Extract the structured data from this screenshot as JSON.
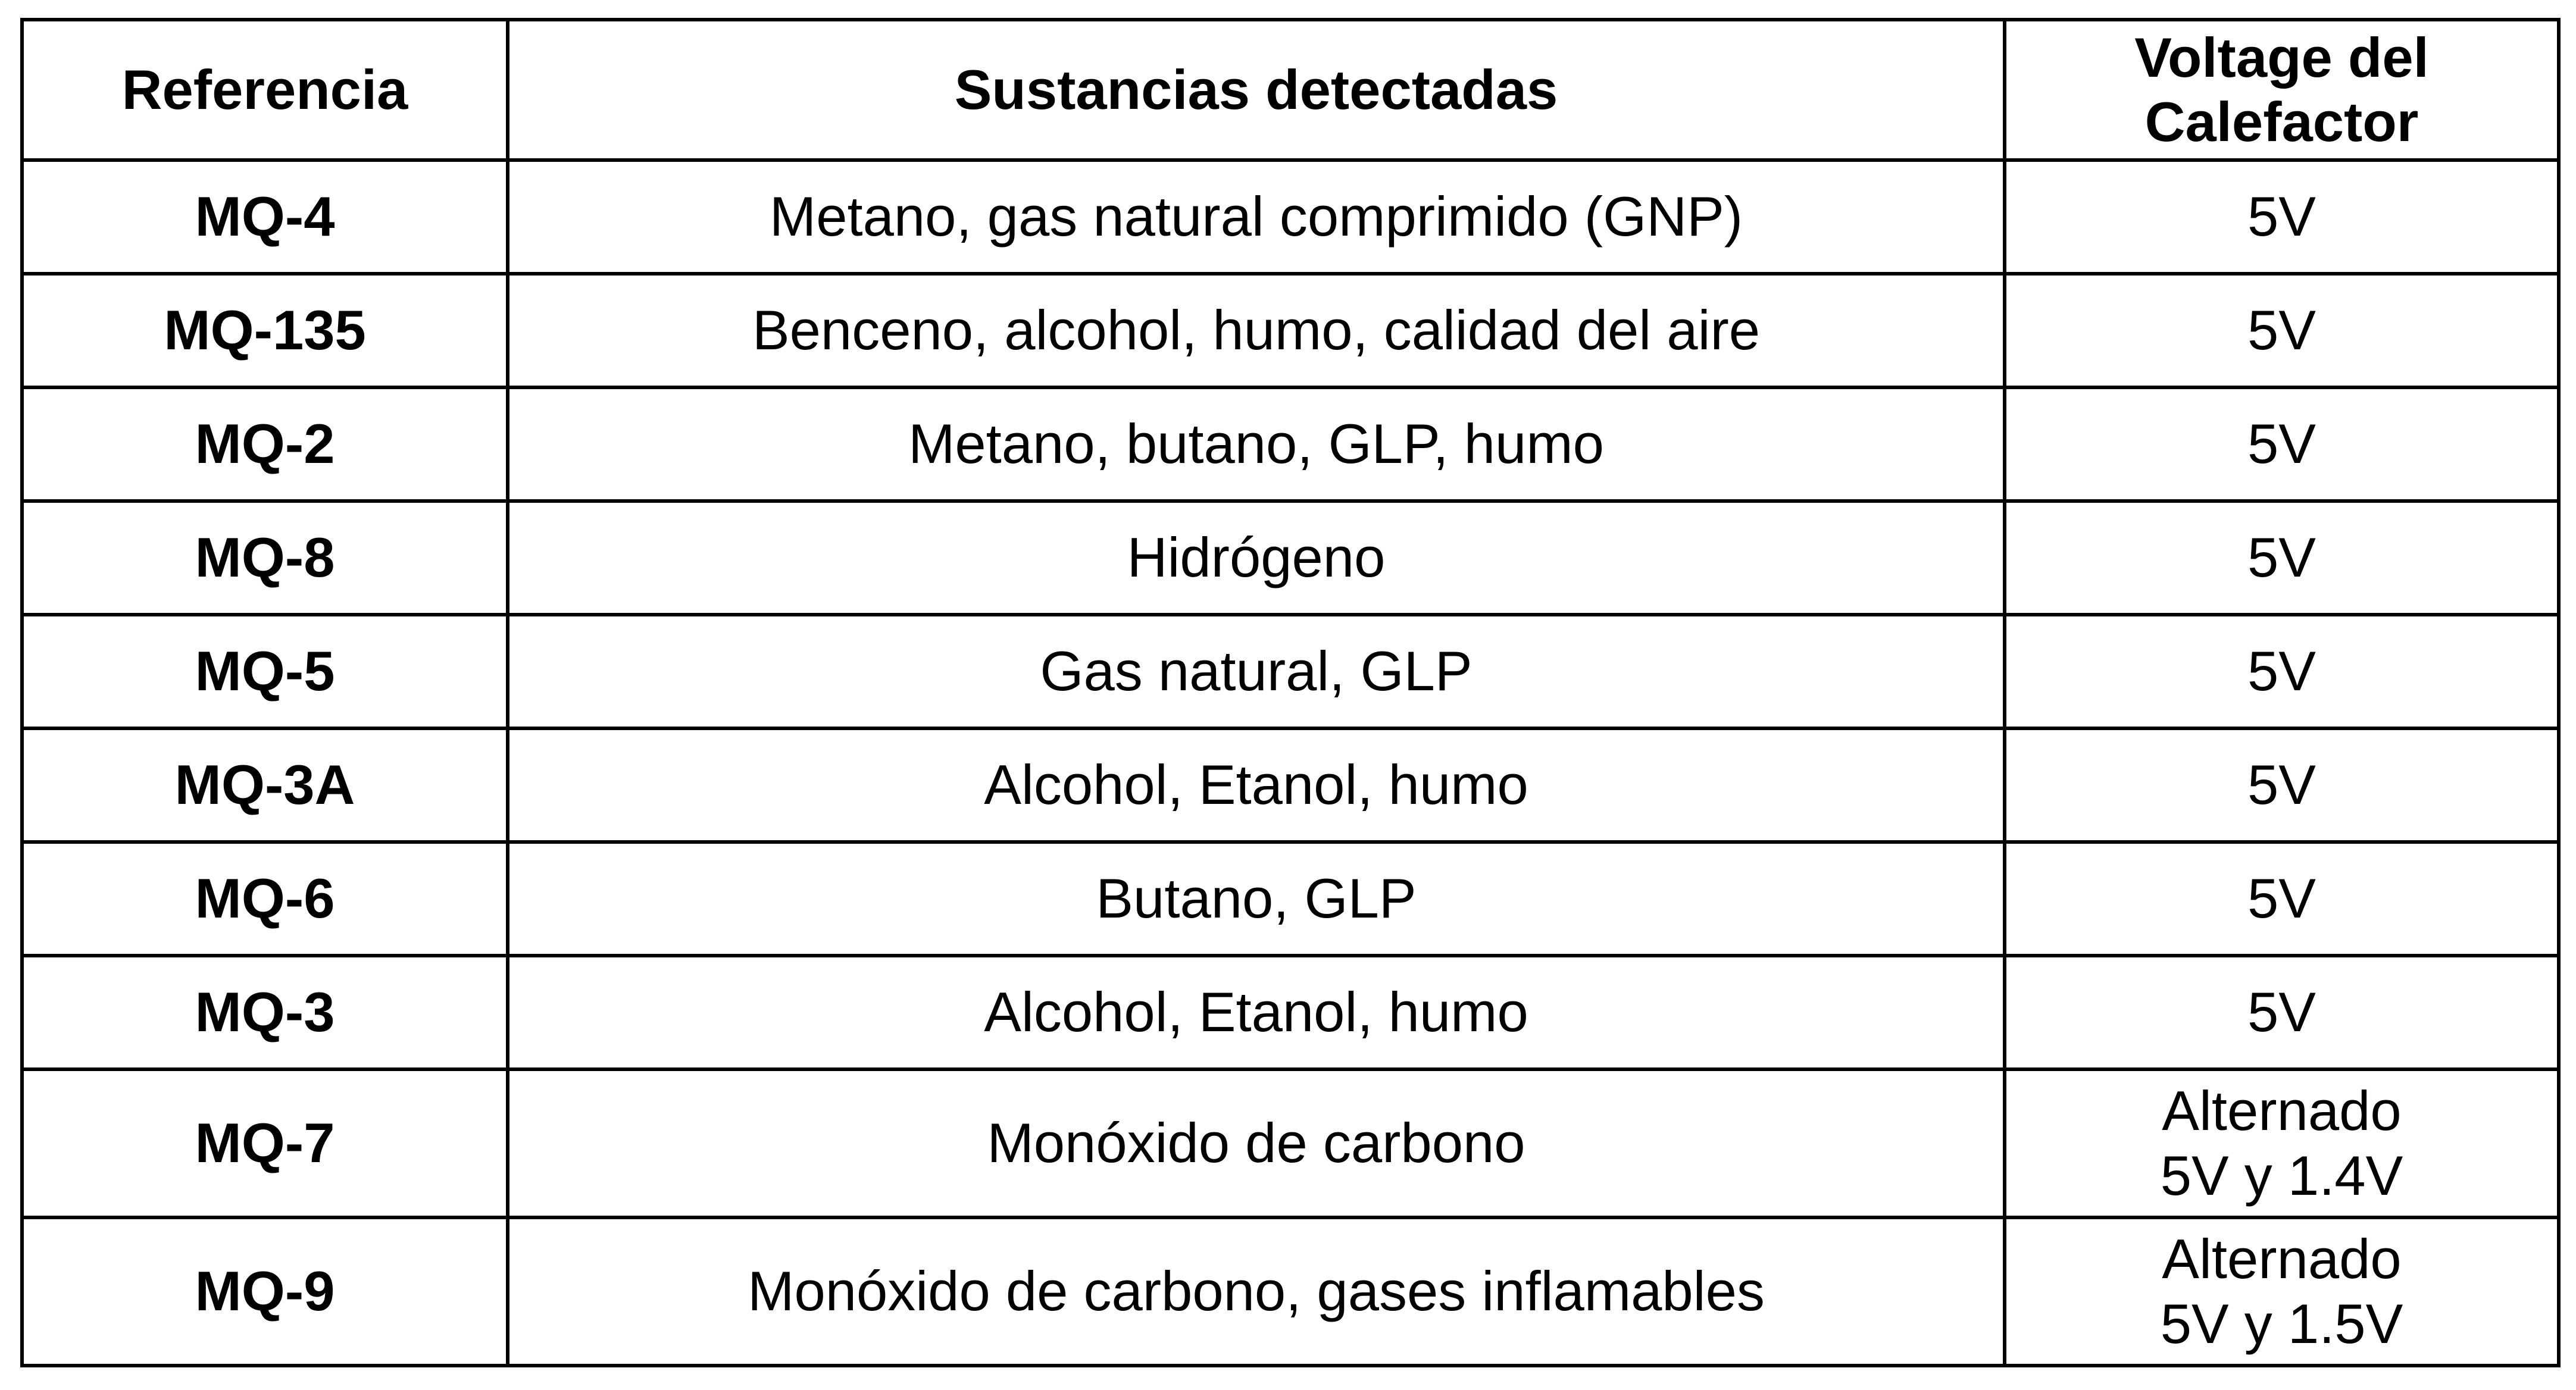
{
  "table": {
    "headers": [
      "Referencia",
      "Sustancias detectadas",
      "Voltage del\nCalefactor"
    ],
    "rows": [
      {
        "ref": "MQ-4",
        "substances": "Metano, gas natural comprimido (GNP)",
        "voltage": "5V"
      },
      {
        "ref": "MQ-135",
        "substances": "Benceno, alcohol, humo, calidad del aire",
        "voltage": "5V"
      },
      {
        "ref": "MQ-2",
        "substances": "Metano, butano, GLP, humo",
        "voltage": "5V"
      },
      {
        "ref": "MQ-8",
        "substances": "Hidrógeno",
        "voltage": "5V"
      },
      {
        "ref": "MQ-5",
        "substances": "Gas natural, GLP",
        "voltage": "5V"
      },
      {
        "ref": "MQ-3A",
        "substances": "Alcohol, Etanol, humo",
        "voltage": "5V"
      },
      {
        "ref": "MQ-6",
        "substances": "Butano, GLP",
        "voltage": "5V"
      },
      {
        "ref": "MQ-3",
        "substances": "Alcohol, Etanol, humo",
        "voltage": "5V"
      },
      {
        "ref": "MQ-7",
        "substances": "Monóxido de carbono",
        "voltage": "Alternado\n5V y 1.4V"
      },
      {
        "ref": "MQ-9",
        "substances": "Monóxido de carbono, gases inflamables",
        "voltage": "Alternado\n5V y 1.5V"
      }
    ]
  }
}
